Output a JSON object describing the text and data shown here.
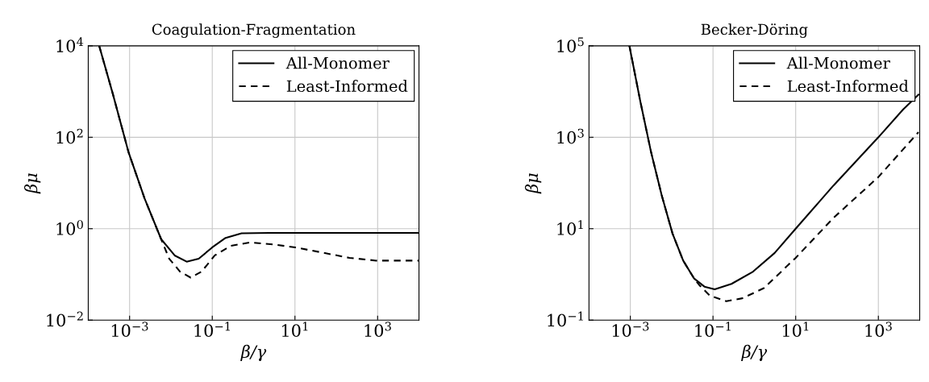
{
  "chart_data": [
    {
      "type": "line",
      "title": "Coagulation-Fragmentation",
      "xlabel": "β/γ",
      "ylabel": "βμ",
      "log": "xy",
      "grid": true,
      "legend": "top right",
      "xlim": [
        0.0001,
        10000
      ],
      "xticks": [
        {
          "value": 0.001,
          "label": "10$^{−3}$"
        },
        {
          "value": 0.1,
          "label": "10$^{−1}$"
        },
        {
          "value": 10,
          "label": "10$^{1}$"
        },
        {
          "value": 1000,
          "label": "10$^{3}$"
        }
      ],
      "ylim": [
        0.01,
        10000
      ],
      "yticks": [
        {
          "value": 0.01,
          "label": "10$^{−2}$"
        },
        {
          "value": 1,
          "label": "10$^{0}$"
        },
        {
          "value": 100,
          "label": "10$^{2}$"
        },
        {
          "value": 10000,
          "label": "10$^{4}$"
        }
      ],
      "series": [
        {
          "name": "All-Monomer",
          "color": "#000000",
          "line_style": "solid",
          "x": [
            0.000184,
            0.00039,
            0.00095,
            0.0023,
            0.0058,
            0.0123,
            0.024,
            0.047,
            0.1,
            0.21,
            0.51,
            2.3,
            10000
          ],
          "values": [
            10000,
            912,
            46,
            4.6,
            0.59,
            0.26,
            0.19,
            0.22,
            0.39,
            0.63,
            0.79,
            0.81,
            0.81
          ]
        },
        {
          "name": "Least-Informed",
          "color": "#000000",
          "line_style": "dashed",
          "x": [
            0.000184,
            0.00039,
            0.00095,
            0.0023,
            0.0058,
            0.0091,
            0.0166,
            0.03,
            0.055,
            0.115,
            0.28,
            0.81,
            3.1,
            10.2,
            46,
            209,
            933,
            10000
          ],
          "values": [
            10000,
            912,
            46,
            4.6,
            0.59,
            0.22,
            0.115,
            0.085,
            0.115,
            0.26,
            0.42,
            0.5,
            0.45,
            0.39,
            0.3,
            0.23,
            0.2,
            0.2
          ]
        }
      ]
    },
    {
      "type": "line",
      "title": "Becker-Döring",
      "xlabel": "β/γ",
      "ylabel": "βμ",
      "log": "xy",
      "grid": true,
      "legend": "top right",
      "xlim": [
        0.0001,
        10000
      ],
      "xticks": [
        {
          "value": 0.001,
          "label": "10$^{−3}$"
        },
        {
          "value": 0.1,
          "label": "10$^{−1}$"
        },
        {
          "value": 10,
          "label": "10$^{1}$"
        },
        {
          "value": 1000,
          "label": "10$^{3}$"
        }
      ],
      "ylim": [
        0.1,
        100000
      ],
      "yticks": [
        {
          "value": 0.1,
          "label": "10$^{−1}$"
        },
        {
          "value": 10,
          "label": "10$^{1}$"
        },
        {
          "value": 1000,
          "label": "10$^{3}$"
        },
        {
          "value": 100000,
          "label": "10$^{5}$"
        }
      ],
      "series": [
        {
          "name": "All-Monomer",
          "color": "#000000",
          "line_style": "solid",
          "x": [
            0.00095,
            0.00174,
            0.0032,
            0.0058,
            0.0105,
            0.019,
            0.035,
            0.062,
            0.11,
            0.28,
            0.93,
            3.1,
            10,
            83,
            1000,
            3980,
            9330
          ],
          "values": [
            100000,
            6170,
            457,
            52,
            7.8,
            2.0,
            0.81,
            0.54,
            0.47,
            0.62,
            1.15,
            2.95,
            10,
            89,
            1000,
            4070,
            8510
          ]
        },
        {
          "name": "Least-Informed",
          "color": "#000000",
          "line_style": "dashed",
          "x": [
            0.00095,
            0.00174,
            0.0032,
            0.0058,
            0.0105,
            0.019,
            0.035,
            0.047,
            0.085,
            0.21,
            0.51,
            1.7,
            10,
            83,
            1000,
            9330
          ],
          "values": [
            100000,
            6170,
            457,
            52,
            7.8,
            2.0,
            0.81,
            0.58,
            0.34,
            0.26,
            0.3,
            0.5,
            2.3,
            17.4,
            135,
            1290
          ]
        }
      ]
    }
  ]
}
